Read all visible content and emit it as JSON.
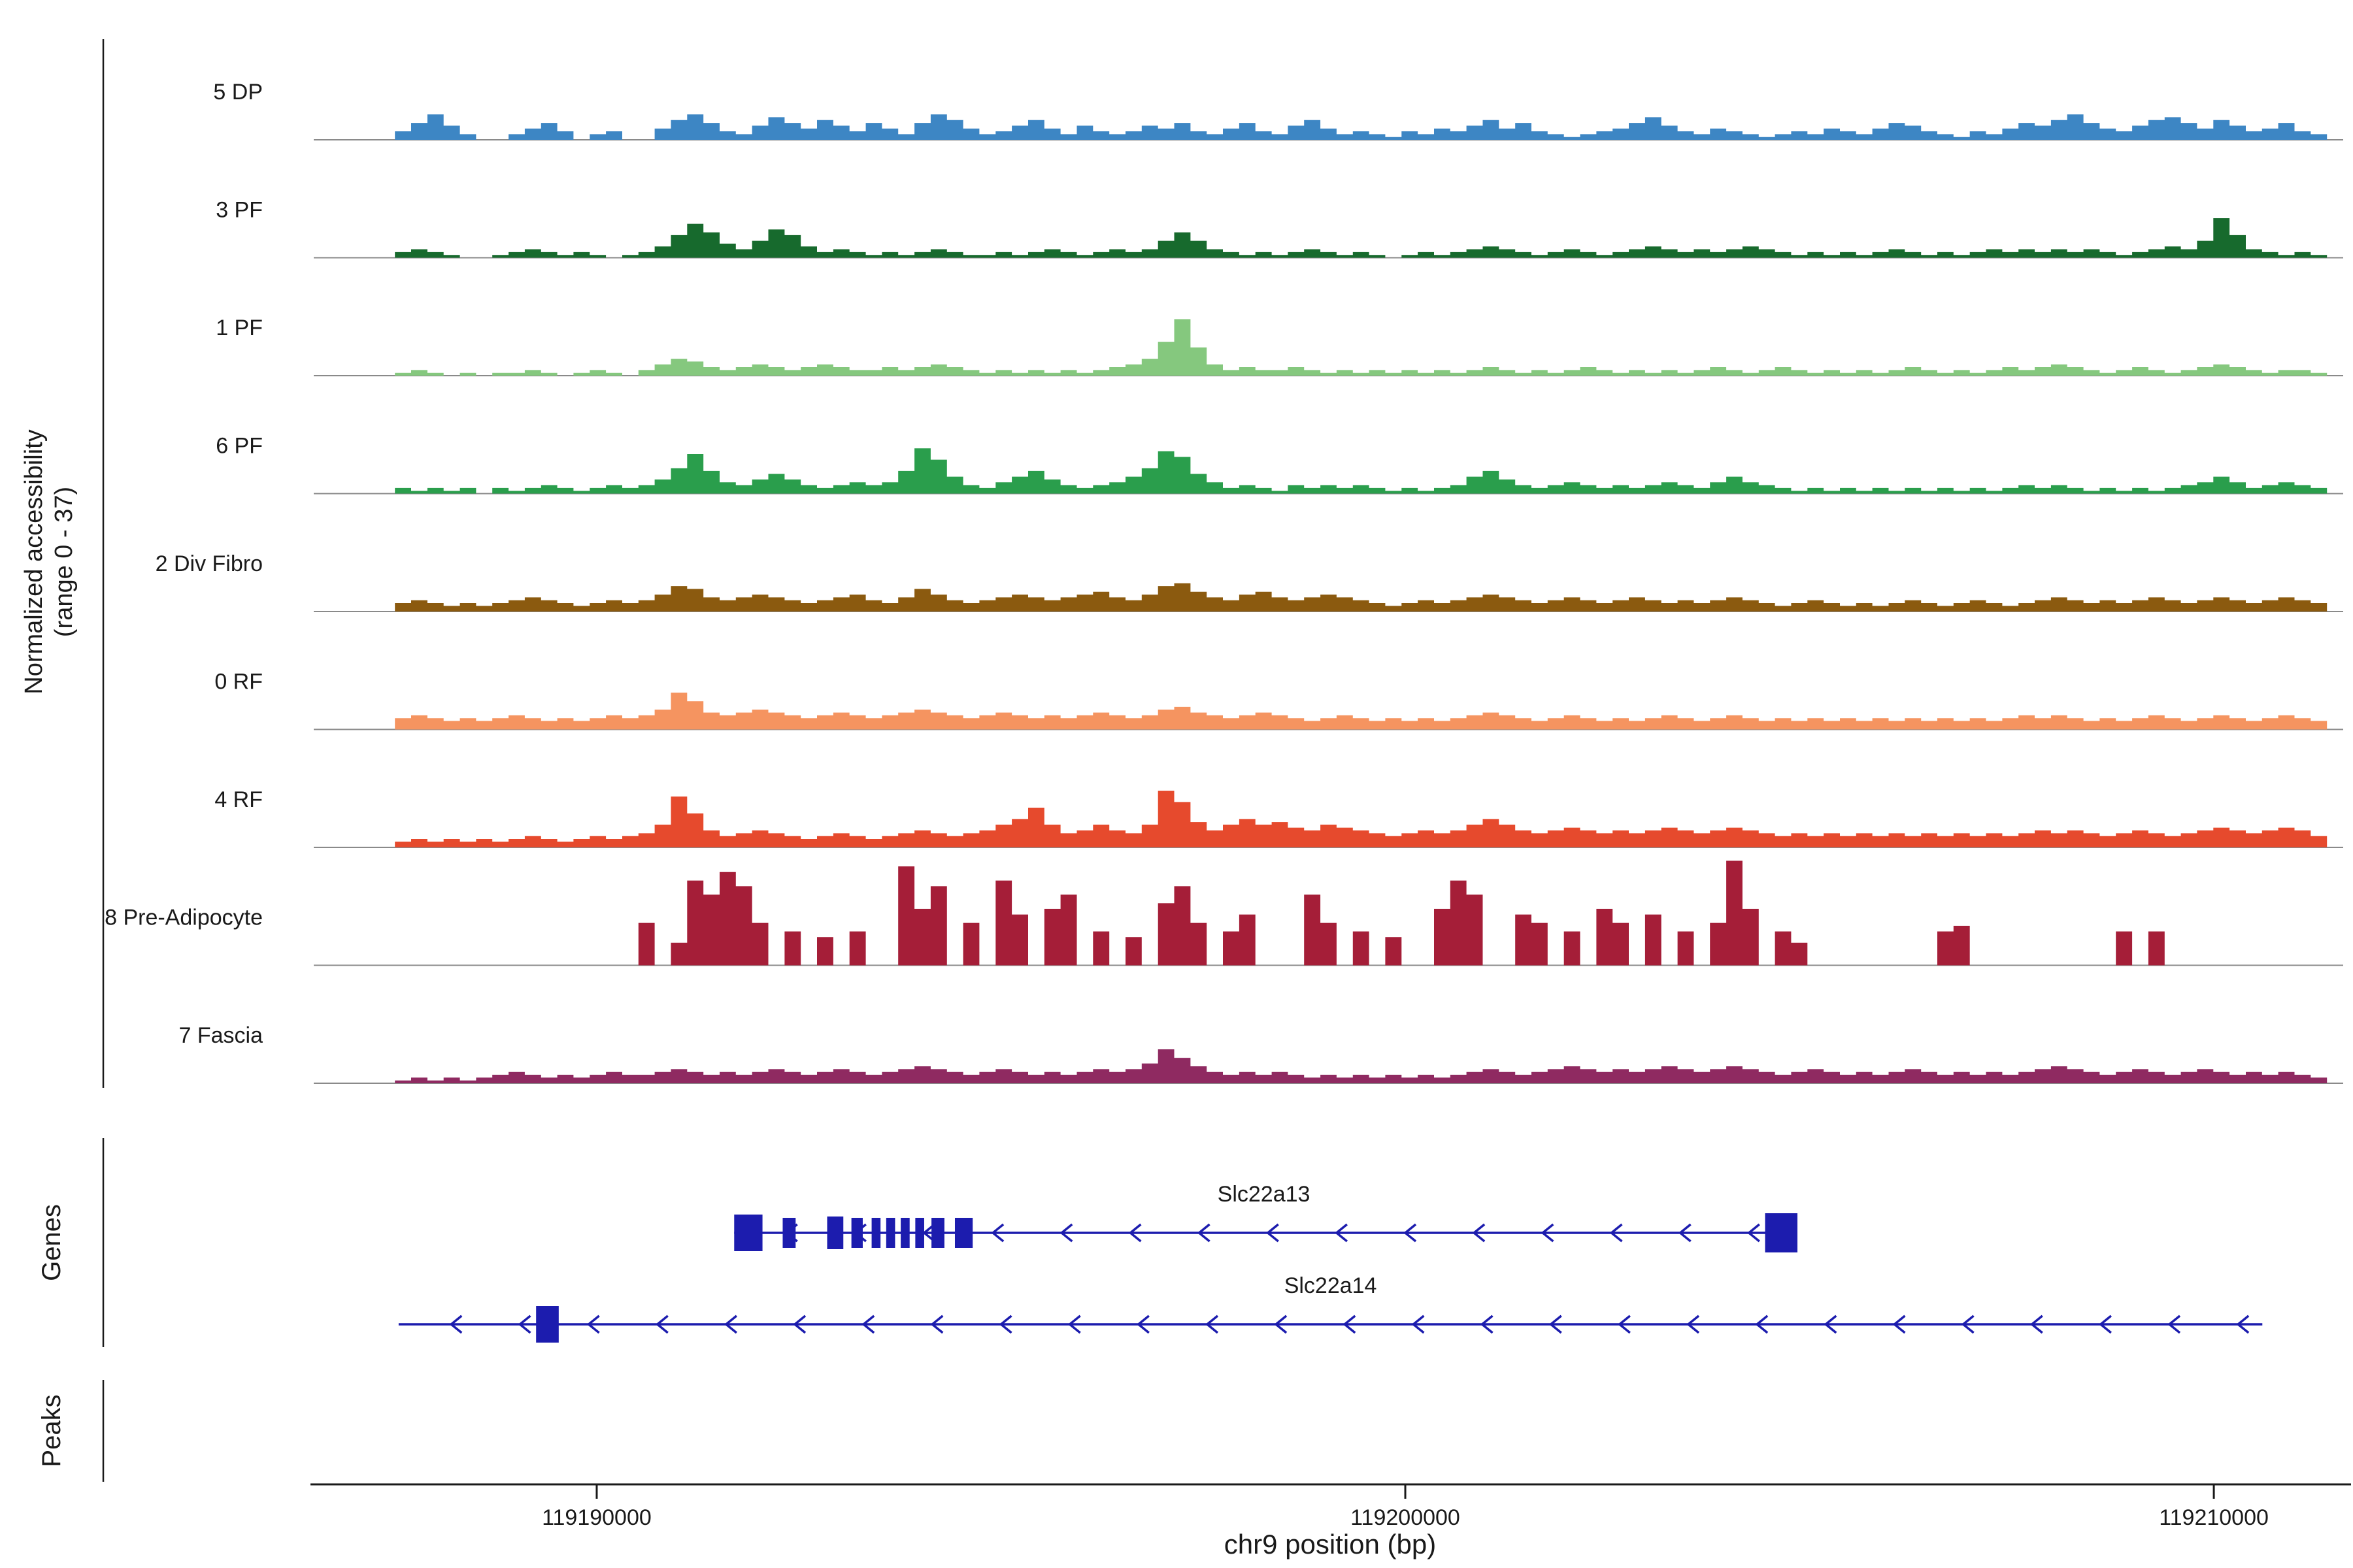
{
  "figure": {
    "y_axis_label_line1": "Normalized accessibility",
    "y_axis_label_line2": "(range 0 - 37)",
    "x_axis_label": "chr9 position (bp)",
    "genes_section_label": "Genes",
    "peaks_section_label": "Peaks"
  },
  "chart_data": {
    "type": "area",
    "title": "",
    "xlabel": "chr9 position (bp)",
    "ylabel": "Normalized accessibility (range 0 - 37)",
    "x_start": 119186500,
    "x_end": 119211600,
    "ylim": [
      0,
      37
    ],
    "grid": false,
    "baseline_color": "#8a8a8a",
    "x_ticks": [
      {
        "pos": 119190000,
        "label": "119190000"
      },
      {
        "pos": 119200000,
        "label": "119200000"
      },
      {
        "pos": 119210000,
        "label": "119210000"
      }
    ],
    "tracks": [
      {
        "name": "5 DP",
        "color": "#3d86c4",
        "values": [
          0,
          0,
          0,
          0,
          0,
          3,
          6,
          9,
          5,
          2,
          0,
          0,
          2,
          4,
          6,
          3,
          0,
          2,
          3,
          0,
          0,
          4,
          7,
          9,
          6,
          3,
          2,
          5,
          8,
          6,
          4,
          7,
          5,
          3,
          6,
          4,
          2,
          6,
          9,
          7,
          4,
          2,
          3,
          5,
          7,
          4,
          2,
          5,
          3,
          2,
          3,
          5,
          4,
          6,
          3,
          2,
          4,
          6,
          3,
          2,
          5,
          7,
          4,
          2,
          3,
          2,
          1,
          3,
          2,
          4,
          3,
          5,
          7,
          4,
          6,
          3,
          2,
          1,
          2,
          3,
          4,
          6,
          8,
          5,
          3,
          2,
          4,
          3,
          2,
          1,
          2,
          3,
          2,
          4,
          3,
          2,
          4,
          6,
          5,
          3,
          2,
          1,
          3,
          2,
          4,
          6,
          5,
          7,
          9,
          6,
          4,
          3,
          5,
          7,
          8,
          6,
          4,
          7,
          5,
          3,
          4,
          6,
          3,
          2,
          0
        ]
      },
      {
        "name": "3 PF",
        "color": "#176a2d",
        "values": [
          0,
          0,
          0,
          0,
          0,
          2,
          3,
          2,
          1,
          0,
          0,
          1,
          2,
          3,
          2,
          1,
          2,
          1,
          0,
          1,
          2,
          4,
          8,
          12,
          9,
          5,
          3,
          6,
          10,
          8,
          4,
          2,
          3,
          2,
          1,
          2,
          1,
          2,
          3,
          2,
          1,
          1,
          2,
          1,
          2,
          3,
          2,
          1,
          2,
          3,
          2,
          3,
          6,
          9,
          6,
          3,
          2,
          1,
          2,
          1,
          2,
          3,
          2,
          1,
          2,
          1,
          0,
          1,
          2,
          1,
          2,
          3,
          4,
          3,
          2,
          1,
          2,
          3,
          2,
          1,
          2,
          3,
          4,
          3,
          2,
          3,
          2,
          3,
          4,
          3,
          2,
          1,
          2,
          1,
          2,
          1,
          2,
          3,
          2,
          1,
          2,
          1,
          2,
          3,
          2,
          3,
          2,
          3,
          2,
          3,
          2,
          1,
          2,
          3,
          4,
          3,
          6,
          14,
          8,
          3,
          2,
          1,
          2,
          1,
          0
        ]
      },
      {
        "name": "1 PF",
        "color": "#85c87e",
        "values": [
          0,
          0,
          0,
          0,
          0,
          1,
          2,
          1,
          0,
          1,
          0,
          1,
          1,
          2,
          1,
          0,
          1,
          2,
          1,
          0,
          2,
          4,
          6,
          5,
          3,
          2,
          3,
          4,
          3,
          2,
          3,
          4,
          3,
          2,
          2,
          3,
          2,
          3,
          4,
          3,
          2,
          1,
          2,
          1,
          2,
          1,
          2,
          1,
          2,
          3,
          4,
          6,
          12,
          20,
          10,
          4,
          2,
          3,
          2,
          2,
          3,
          2,
          1,
          2,
          1,
          2,
          1,
          2,
          1,
          2,
          1,
          2,
          3,
          2,
          1,
          2,
          1,
          2,
          3,
          2,
          1,
          2,
          1,
          2,
          1,
          2,
          3,
          2,
          1,
          2,
          3,
          2,
          1,
          2,
          1,
          2,
          1,
          2,
          3,
          2,
          1,
          2,
          1,
          2,
          3,
          2,
          3,
          4,
          3,
          2,
          1,
          2,
          3,
          2,
          1,
          2,
          3,
          4,
          3,
          2,
          1,
          2,
          2,
          1,
          0
        ]
      },
      {
        "name": "6 PF",
        "color": "#2a9e4c",
        "values": [
          0,
          0,
          0,
          0,
          0,
          2,
          1,
          2,
          1,
          2,
          0,
          2,
          1,
          2,
          3,
          2,
          1,
          2,
          3,
          2,
          3,
          5,
          9,
          14,
          8,
          4,
          3,
          5,
          7,
          5,
          3,
          2,
          3,
          4,
          3,
          4,
          8,
          16,
          12,
          6,
          3,
          2,
          4,
          6,
          8,
          5,
          3,
          2,
          3,
          4,
          6,
          9,
          15,
          13,
          7,
          4,
          2,
          3,
          2,
          1,
          3,
          2,
          3,
          2,
          3,
          2,
          1,
          2,
          1,
          2,
          3,
          6,
          8,
          5,
          3,
          2,
          3,
          4,
          3,
          2,
          3,
          2,
          3,
          4,
          3,
          2,
          4,
          6,
          4,
          3,
          2,
          1,
          2,
          1,
          2,
          1,
          2,
          1,
          2,
          1,
          2,
          1,
          2,
          1,
          2,
          3,
          2,
          3,
          2,
          1,
          2,
          1,
          2,
          1,
          2,
          3,
          4,
          6,
          4,
          2,
          3,
          4,
          3,
          2,
          0
        ]
      },
      {
        "name": "2 Div Fibro",
        "color": "#8b5a0f",
        "values": [
          0,
          0,
          0,
          0,
          0,
          3,
          4,
          3,
          2,
          3,
          2,
          3,
          4,
          5,
          4,
          3,
          2,
          3,
          4,
          3,
          4,
          6,
          9,
          8,
          5,
          4,
          5,
          6,
          5,
          4,
          3,
          4,
          5,
          6,
          4,
          3,
          5,
          8,
          6,
          4,
          3,
          4,
          5,
          6,
          5,
          4,
          5,
          6,
          7,
          5,
          4,
          6,
          9,
          10,
          7,
          5,
          4,
          6,
          7,
          5,
          4,
          5,
          6,
          5,
          4,
          3,
          2,
          3,
          4,
          3,
          4,
          5,
          6,
          5,
          4,
          3,
          4,
          5,
          4,
          3,
          4,
          5,
          4,
          3,
          4,
          3,
          4,
          5,
          4,
          3,
          2,
          3,
          4,
          3,
          2,
          3,
          2,
          3,
          4,
          3,
          2,
          3,
          4,
          3,
          2,
          3,
          4,
          5,
          4,
          3,
          4,
          3,
          4,
          5,
          4,
          3,
          4,
          5,
          4,
          3,
          4,
          5,
          4,
          3,
          0
        ]
      },
      {
        "name": "0 RF",
        "color": "#f59460",
        "values": [
          0,
          0,
          0,
          0,
          0,
          4,
          5,
          4,
          3,
          4,
          3,
          4,
          5,
          4,
          3,
          4,
          3,
          4,
          5,
          4,
          5,
          7,
          13,
          10,
          6,
          5,
          6,
          7,
          6,
          5,
          4,
          5,
          6,
          5,
          4,
          5,
          6,
          7,
          6,
          5,
          4,
          5,
          6,
          5,
          4,
          5,
          4,
          5,
          6,
          5,
          4,
          5,
          7,
          8,
          6,
          5,
          4,
          5,
          6,
          5,
          4,
          3,
          4,
          5,
          4,
          3,
          4,
          3,
          4,
          3,
          4,
          5,
          6,
          5,
          4,
          3,
          4,
          5,
          4,
          3,
          4,
          3,
          4,
          5,
          4,
          3,
          4,
          5,
          4,
          3,
          4,
          3,
          4,
          3,
          4,
          3,
          4,
          3,
          4,
          3,
          4,
          3,
          4,
          3,
          4,
          5,
          4,
          5,
          4,
          3,
          4,
          3,
          4,
          5,
          4,
          3,
          4,
          5,
          4,
          3,
          4,
          5,
          4,
          3,
          0
        ]
      },
      {
        "name": "4 RF",
        "color": "#e64a2d",
        "values": [
          0,
          0,
          0,
          0,
          0,
          2,
          3,
          2,
          3,
          2,
          3,
          2,
          3,
          4,
          3,
          2,
          3,
          4,
          3,
          4,
          5,
          8,
          18,
          12,
          6,
          4,
          5,
          6,
          5,
          4,
          3,
          4,
          5,
          4,
          3,
          4,
          5,
          6,
          5,
          4,
          5,
          6,
          8,
          10,
          14,
          8,
          5,
          6,
          8,
          6,
          5,
          8,
          20,
          16,
          9,
          6,
          8,
          10,
          8,
          9,
          7,
          6,
          8,
          7,
          6,
          5,
          4,
          5,
          6,
          5,
          6,
          8,
          10,
          8,
          6,
          5,
          6,
          7,
          6,
          5,
          6,
          5,
          6,
          7,
          6,
          5,
          6,
          7,
          6,
          5,
          4,
          5,
          4,
          5,
          4,
          5,
          4,
          5,
          4,
          5,
          4,
          5,
          4,
          5,
          4,
          5,
          6,
          5,
          6,
          5,
          4,
          5,
          6,
          5,
          4,
          5,
          6,
          7,
          6,
          5,
          6,
          7,
          6,
          4,
          0
        ]
      },
      {
        "name": "8 Pre-Adipocyte",
        "color": "#a51e38",
        "values": [
          0,
          0,
          0,
          0,
          0,
          0,
          0,
          0,
          0,
          0,
          0,
          0,
          0,
          0,
          0,
          0,
          0,
          0,
          0,
          0,
          15,
          0,
          8,
          30,
          25,
          33,
          28,
          15,
          0,
          12,
          0,
          10,
          0,
          12,
          0,
          0,
          35,
          20,
          28,
          0,
          15,
          0,
          30,
          18,
          0,
          20,
          25,
          0,
          12,
          0,
          10,
          0,
          22,
          28,
          15,
          0,
          12,
          18,
          0,
          0,
          0,
          25,
          15,
          0,
          12,
          0,
          10,
          0,
          0,
          20,
          30,
          25,
          0,
          0,
          18,
          15,
          0,
          12,
          0,
          20,
          15,
          0,
          18,
          0,
          12,
          0,
          15,
          37,
          20,
          0,
          12,
          8,
          0,
          0,
          0,
          0,
          0,
          0,
          0,
          0,
          12,
          14,
          0,
          0,
          0,
          0,
          0,
          0,
          0,
          0,
          0,
          12,
          0,
          12,
          0,
          0,
          0,
          0,
          0,
          0,
          0,
          0,
          0,
          0,
          0
        ]
      },
      {
        "name": "7 Fascia",
        "color": "#8f2a61",
        "values": [
          0,
          0,
          0,
          0,
          0,
          1,
          2,
          1,
          2,
          1,
          2,
          3,
          4,
          3,
          2,
          3,
          2,
          3,
          4,
          3,
          3,
          4,
          5,
          4,
          3,
          4,
          3,
          4,
          5,
          4,
          3,
          4,
          5,
          4,
          3,
          4,
          5,
          6,
          5,
          4,
          3,
          4,
          5,
          4,
          3,
          4,
          3,
          4,
          5,
          4,
          5,
          7,
          12,
          9,
          6,
          4,
          3,
          4,
          3,
          4,
          3,
          2,
          3,
          2,
          3,
          2,
          3,
          2,
          3,
          2,
          3,
          4,
          5,
          4,
          3,
          4,
          5,
          6,
          5,
          4,
          5,
          4,
          5,
          6,
          5,
          4,
          5,
          6,
          5,
          4,
          3,
          4,
          5,
          4,
          3,
          4,
          3,
          4,
          5,
          4,
          3,
          4,
          3,
          4,
          3,
          4,
          5,
          6,
          5,
          4,
          3,
          4,
          5,
          4,
          3,
          4,
          5,
          4,
          3,
          4,
          3,
          4,
          3,
          2,
          0
        ]
      }
    ],
    "genes": [
      {
        "name": "Slc22a13",
        "strand": "-",
        "color": "#1c1cae",
        "start": 119191700,
        "end": 119204800,
        "exons": [
          [
            119191700,
            350,
            56
          ],
          [
            119192300,
            160,
            46
          ],
          [
            119192850,
            200,
            50
          ],
          [
            119193150,
            140,
            46
          ],
          [
            119193400,
            110,
            46
          ],
          [
            119193580,
            110,
            46
          ],
          [
            119193760,
            110,
            46
          ],
          [
            119193940,
            110,
            46
          ],
          [
            119194140,
            160,
            46
          ],
          [
            119194430,
            220,
            46
          ],
          [
            119204450,
            400,
            60
          ]
        ]
      },
      {
        "name": "Slc22a14",
        "strand": "-",
        "color": "#1c1cae",
        "start": 119187550,
        "end": 119210600,
        "exons": [
          [
            119189250,
            280,
            56
          ]
        ]
      }
    ],
    "peaks": []
  }
}
